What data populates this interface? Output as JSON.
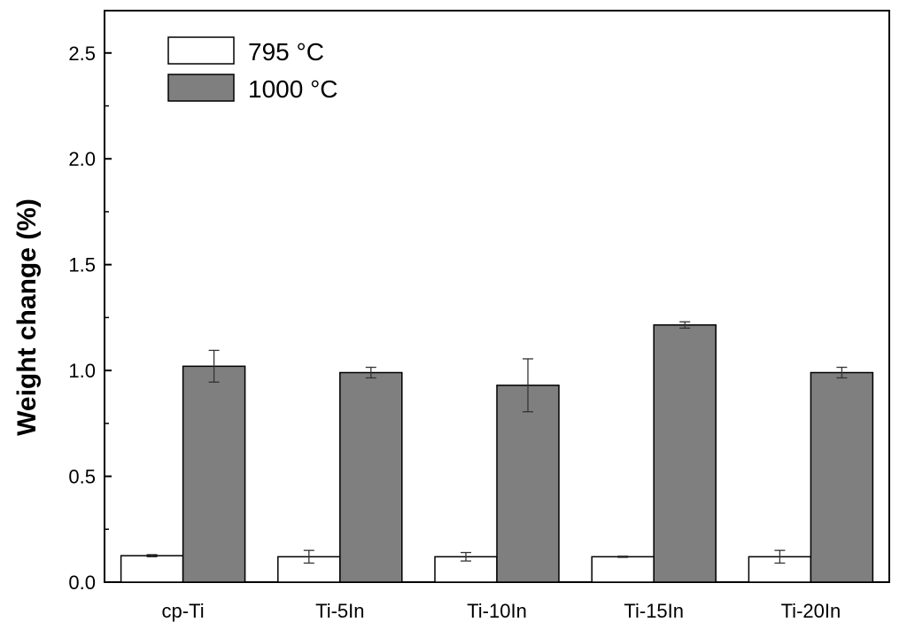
{
  "chart_data": {
    "type": "bar",
    "title": "",
    "xlabel": "",
    "ylabel": "Weight change (%)",
    "categories": [
      "cp-Ti",
      "Ti-5In",
      "Ti-10In",
      "Ti-15In",
      "Ti-20In"
    ],
    "ylim": [
      0,
      2.7
    ],
    "yticks": [
      0.0,
      0.5,
      1.0,
      1.5,
      2.0,
      2.5
    ],
    "ytick_labels": [
      "0.0",
      "0.5",
      "1.0",
      "1.5",
      "2.0",
      "2.5"
    ],
    "grid": false,
    "legend_position": "top-left",
    "series": [
      {
        "name": "795 °C",
        "color": "#ffffff",
        "values": [
          0.125,
          0.12,
          0.12,
          0.12,
          0.12
        ],
        "errors": [
          0.005,
          0.03,
          0.02,
          0.003,
          0.03
        ]
      },
      {
        "name": "1000 °C",
        "color": "#7f7f7f",
        "values": [
          1.02,
          0.99,
          0.93,
          1.215,
          0.99
        ],
        "errors": [
          0.075,
          0.025,
          0.125,
          0.015,
          0.025
        ]
      }
    ]
  }
}
